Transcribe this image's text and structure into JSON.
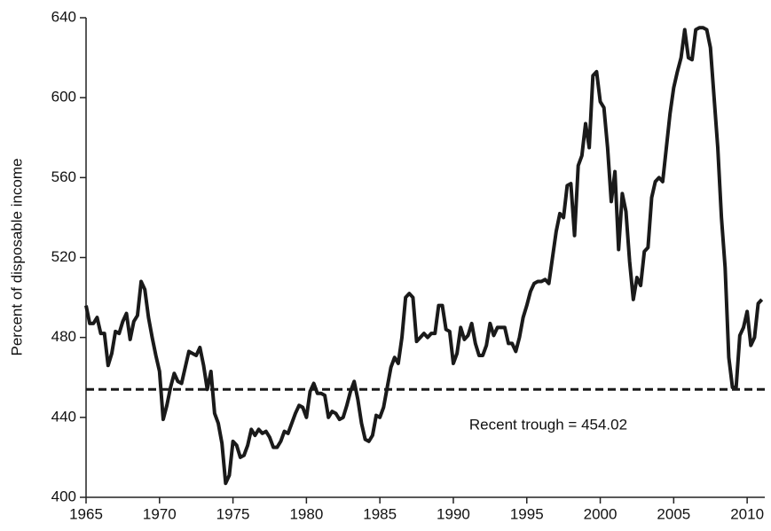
{
  "chart_data": {
    "type": "line",
    "y_label": "Percent of disposable income",
    "x": [
      1965,
      1965.25,
      1965.5,
      1965.75,
      1966,
      1966.25,
      1966.5,
      1966.75,
      1967,
      1967.25,
      1967.5,
      1967.75,
      1968,
      1968.25,
      1968.5,
      1968.75,
      1969,
      1969.25,
      1969.5,
      1969.75,
      1970,
      1970.25,
      1970.5,
      1970.75,
      1971,
      1971.25,
      1971.5,
      1971.75,
      1972,
      1972.25,
      1972.5,
      1972.75,
      1973,
      1973.25,
      1973.5,
      1973.75,
      1974,
      1974.25,
      1974.5,
      1974.75,
      1975,
      1975.25,
      1975.5,
      1975.75,
      1976,
      1976.25,
      1976.5,
      1976.75,
      1977,
      1977.25,
      1977.5,
      1977.75,
      1978,
      1978.25,
      1978.5,
      1978.75,
      1979,
      1979.25,
      1979.5,
      1979.75,
      1980,
      1980.25,
      1980.5,
      1980.75,
      1981,
      1981.25,
      1981.5,
      1981.75,
      1982,
      1982.25,
      1982.5,
      1982.75,
      1983,
      1983.25,
      1983.5,
      1983.75,
      1984,
      1984.25,
      1984.5,
      1984.75,
      1985,
      1985.25,
      1985.5,
      1985.75,
      1986,
      1986.25,
      1986.5,
      1986.75,
      1987,
      1987.25,
      1987.5,
      1987.75,
      1988,
      1988.25,
      1988.5,
      1988.75,
      1989,
      1989.25,
      1989.5,
      1989.75,
      1990,
      1990.25,
      1990.5,
      1990.75,
      1991,
      1991.25,
      1991.5,
      1991.75,
      1992,
      1992.25,
      1992.5,
      1992.75,
      1993,
      1993.25,
      1993.5,
      1993.75,
      1994,
      1994.25,
      1994.5,
      1994.75,
      1995,
      1995.25,
      1995.5,
      1995.75,
      1996,
      1996.25,
      1996.5,
      1996.75,
      1997,
      1997.25,
      1997.5,
      1997.75,
      1998,
      1998.25,
      1998.5,
      1998.75,
      1999,
      1999.25,
      1999.5,
      1999.75,
      2000,
      2000.25,
      2000.5,
      2000.75,
      2001,
      2001.25,
      2001.5,
      2001.75,
      2002,
      2002.25,
      2002.5,
      2002.75,
      2003,
      2003.25,
      2003.5,
      2003.75,
      2004,
      2004.25,
      2004.5,
      2004.75,
      2005,
      2005.25,
      2005.5,
      2005.75,
      2006,
      2006.25,
      2006.5,
      2006.75,
      2007,
      2007.25,
      2007.5,
      2007.75,
      2008,
      2008.25,
      2008.5,
      2008.75,
      2009,
      2009.25,
      2009.5,
      2009.75,
      2010,
      2010.25,
      2010.5,
      2010.75,
      2011
    ],
    "series": [
      {
        "color": "#1a1a1a",
        "values": [
          496,
          487,
          487,
          490,
          482,
          482,
          466,
          472,
          483,
          482,
          488,
          492,
          479,
          488,
          491,
          508,
          504,
          490,
          480,
          471,
          463,
          439,
          446,
          455,
          462,
          458,
          457,
          465,
          473,
          472,
          471,
          475,
          466,
          454,
          463,
          442,
          437,
          427,
          407,
          411,
          428,
          426,
          420,
          421,
          426,
          434,
          431,
          434,
          432,
          433,
          430,
          425,
          425,
          428,
          433,
          432,
          437,
          442,
          446,
          445,
          440,
          453,
          457,
          452,
          452,
          451,
          440,
          443,
          442,
          439,
          440,
          446,
          453,
          458,
          449,
          437,
          429,
          428,
          431,
          441,
          440,
          445,
          455,
          465,
          470,
          467,
          480,
          500,
          502,
          500,
          478,
          480,
          482,
          480,
          482,
          482,
          496,
          496,
          484,
          483,
          467,
          472,
          485,
          479,
          481,
          487,
          477,
          471,
          471,
          476,
          487,
          481,
          485,
          485,
          485,
          477,
          477,
          473,
          480,
          490,
          496,
          503,
          507,
          508,
          508,
          509,
          507,
          520,
          533,
          542,
          540,
          556,
          557,
          531,
          566,
          571,
          587,
          575,
          611,
          613,
          598,
          595,
          575,
          548,
          563,
          524,
          552,
          543,
          518,
          499,
          510,
          506,
          523,
          525,
          550,
          558,
          560,
          558,
          575,
          592,
          605,
          613,
          620,
          634,
          620,
          619,
          634,
          635,
          635,
          634,
          625,
          600,
          575,
          540,
          515,
          470,
          455,
          455,
          481,
          485,
          493,
          476,
          480,
          497,
          499
        ]
      }
    ],
    "reference_line": {
      "value": 454.02,
      "label": "Recent trough = 454.02"
    },
    "xlim": [
      1965,
      2011.2
    ],
    "xticks": [
      1965,
      1970,
      1975,
      1980,
      1985,
      1990,
      1995,
      2000,
      2005,
      2010
    ],
    "ylim": [
      400,
      640
    ],
    "yticks": [
      400,
      440,
      480,
      520,
      560,
      600,
      640
    ]
  }
}
